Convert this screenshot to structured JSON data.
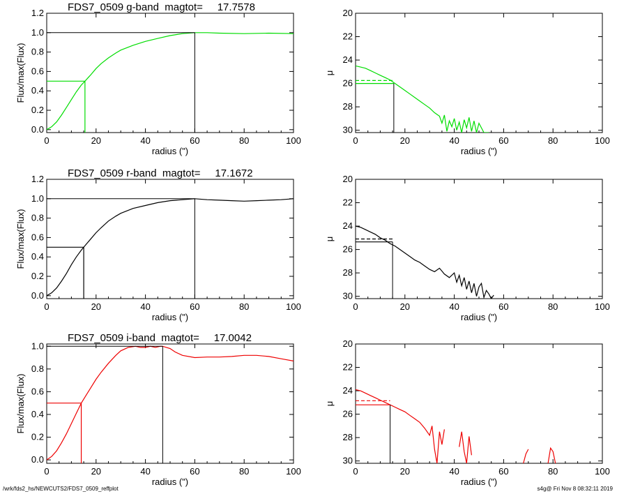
{
  "footer": {
    "path": "/wrk/fds2_hs/NEWCUTS2/FDS7_0509_reffplot",
    "stamp": "s4g@  Fri Nov  8 08:32:11 2019"
  },
  "colors": {
    "g": "#00dd00",
    "r": "#000000",
    "i": "#ee0000",
    "axis": "#000000"
  },
  "chart_data": [
    {
      "type": "line",
      "title": "FDS7_0509 g-band  magtot=     17.7578",
      "xlabel": "radius (\")",
      "ylabel": "Flux/max(Flux)",
      "xlim": [
        0,
        100
      ],
      "ylim": [
        -0.03,
        1.2
      ],
      "xticks": [
        0,
        20,
        40,
        60,
        80,
        100
      ],
      "xticklabels": [
        "0",
        "20",
        "40",
        "60",
        "80",
        "100"
      ],
      "yticks": [
        0,
        0.2,
        0.4,
        0.6,
        0.8,
        1.0,
        1.2
      ],
      "yticklabels": [
        "0.0",
        "0.2",
        "0.4",
        "0.6",
        "0.8",
        "1.0",
        "1.2"
      ],
      "color": "#00dd00",
      "x": [
        0,
        2,
        4,
        6,
        8,
        10,
        12,
        14,
        15.5,
        18,
        20,
        22,
        25,
        28,
        30,
        35,
        40,
        45,
        50,
        55,
        60,
        65,
        70,
        80,
        90,
        100
      ],
      "y": [
        0,
        0.03,
        0.08,
        0.15,
        0.23,
        0.31,
        0.39,
        0.46,
        0.5,
        0.57,
        0.63,
        0.68,
        0.74,
        0.79,
        0.82,
        0.87,
        0.91,
        0.94,
        0.97,
        0.99,
        1.0,
        1.0,
        0.995,
        0.99,
        0.995,
        0.99
      ],
      "half_radius": 15.5,
      "half_level": 0.5,
      "total_radius": 60,
      "total_level": 1.0
    },
    {
      "type": "line",
      "title": "",
      "xlabel": "radius (\")",
      "ylabel": "μ",
      "xlim": [
        0,
        100
      ],
      "ylim": [
        30.2,
        20
      ],
      "inverted_y": true,
      "xticks": [
        0,
        20,
        40,
        60,
        80,
        100
      ],
      "xticklabels": [
        "0",
        "20",
        "40",
        "60",
        "80",
        "100"
      ],
      "yticks": [
        20,
        22,
        24,
        26,
        28,
        30
      ],
      "yticklabels": [
        "20",
        "22",
        "24",
        "26",
        "28",
        "30"
      ],
      "color": "#00dd00",
      "x": [
        0,
        2,
        4,
        6,
        8,
        10,
        12,
        14,
        16,
        18,
        20,
        22,
        24,
        26,
        28,
        30,
        32,
        34,
        35,
        36,
        37,
        38,
        39,
        40,
        41,
        42,
        43,
        44,
        45,
        46,
        47,
        48,
        49,
        50,
        52,
        54
      ],
      "y": [
        24.5,
        24.6,
        24.7,
        24.9,
        25.1,
        25.3,
        25.5,
        25.7,
        26.0,
        26.3,
        26.6,
        26.9,
        27.2,
        27.5,
        27.8,
        28.1,
        28.5,
        28.8,
        29.4,
        28.7,
        30.1,
        29.2,
        29.7,
        29.0,
        30.0,
        29.3,
        30.2,
        29.1,
        29.8,
        28.9,
        30.1,
        29.2,
        30.2,
        29.4,
        30.2,
        30.2
      ],
      "half_radius": 15.5,
      "mu_half": 26.0,
      "mu_mean_half": 25.75
    },
    {
      "type": "line",
      "title": "FDS7_0509 r-band  magtot=     17.1672",
      "xlabel": "radius (\")",
      "ylabel": "Flux/max(Flux)",
      "xlim": [
        0,
        100
      ],
      "ylim": [
        -0.03,
        1.2
      ],
      "xticks": [
        0,
        20,
        40,
        60,
        80,
        100
      ],
      "xticklabels": [
        "0",
        "20",
        "40",
        "60",
        "80",
        "100"
      ],
      "yticks": [
        0,
        0.2,
        0.4,
        0.6,
        0.8,
        1.0,
        1.2
      ],
      "yticklabels": [
        "0.0",
        "0.2",
        "0.4",
        "0.6",
        "0.8",
        "1.0",
        "1.2"
      ],
      "color": "#000000",
      "x": [
        0,
        2,
        4,
        6,
        8,
        10,
        12,
        14,
        15,
        18,
        20,
        22,
        25,
        28,
        30,
        35,
        40,
        45,
        50,
        55,
        60,
        65,
        70,
        75,
        80,
        85,
        90,
        95,
        100
      ],
      "y": [
        0,
        0.03,
        0.08,
        0.15,
        0.23,
        0.32,
        0.4,
        0.47,
        0.5,
        0.59,
        0.65,
        0.7,
        0.77,
        0.82,
        0.85,
        0.9,
        0.93,
        0.96,
        0.98,
        0.99,
        1.0,
        0.99,
        0.985,
        0.98,
        0.975,
        0.98,
        0.985,
        0.99,
        1.0
      ],
      "half_radius": 15,
      "half_level": 0.5,
      "total_radius": 60,
      "total_level": 1.0
    },
    {
      "type": "line",
      "title": "",
      "xlabel": "radius (\")",
      "ylabel": "μ",
      "xlim": [
        0,
        100
      ],
      "ylim": [
        30.2,
        20
      ],
      "inverted_y": true,
      "xticks": [
        0,
        20,
        40,
        60,
        80,
        100
      ],
      "xticklabels": [
        "0",
        "20",
        "40",
        "60",
        "80",
        "100"
      ],
      "yticks": [
        20,
        22,
        24,
        26,
        28,
        30
      ],
      "yticklabels": [
        "20",
        "22",
        "24",
        "26",
        "28",
        "30"
      ],
      "color": "#000000",
      "x": [
        0,
        2,
        4,
        6,
        8,
        10,
        12,
        14,
        16,
        18,
        20,
        22,
        24,
        26,
        28,
        30,
        32,
        34,
        36,
        38,
        40,
        41,
        42,
        43,
        44,
        45,
        46,
        47,
        48,
        49,
        50,
        51,
        52,
        53,
        54,
        55,
        56
      ],
      "y": [
        24.0,
        24.1,
        24.3,
        24.5,
        24.7,
        25.0,
        25.2,
        25.5,
        25.7,
        26.0,
        26.3,
        26.6,
        26.9,
        27.1,
        27.4,
        27.7,
        27.9,
        27.6,
        28.1,
        28.4,
        28.0,
        28.8,
        28.2,
        29.1,
        28.4,
        29.4,
        28.7,
        29.7,
        28.9,
        30.0,
        29.2,
        28.9,
        30.1,
        29.5,
        29.8,
        30.2,
        29.9
      ],
      "half_radius": 15,
      "mu_half": 25.35,
      "mu_mean_half": 25.1
    },
    {
      "type": "line",
      "title": "FDS7_0509 i-band  magtot=     17.0042",
      "xlabel": "radius (\")",
      "ylabel": "Flux/max(Flux)",
      "xlim": [
        0,
        100
      ],
      "ylim": [
        -0.03,
        1.02
      ],
      "xticks": [
        0,
        20,
        40,
        60,
        80,
        100
      ],
      "xticklabels": [
        "0",
        "20",
        "40",
        "60",
        "80",
        "100"
      ],
      "yticks": [
        0,
        0.2,
        0.4,
        0.6,
        0.8,
        1.0
      ],
      "yticklabels": [
        "0.0",
        "0.2",
        "0.4",
        "0.6",
        "0.8",
        "1.0"
      ],
      "color": "#ee0000",
      "x": [
        0,
        2,
        4,
        6,
        8,
        10,
        12,
        14,
        16,
        18,
        20,
        22,
        25,
        28,
        30,
        33,
        36,
        38,
        40,
        42,
        44,
        46,
        47,
        50,
        52,
        55,
        60,
        65,
        70,
        75,
        80,
        85,
        90,
        95,
        100
      ],
      "y": [
        0,
        0.03,
        0.08,
        0.15,
        0.23,
        0.32,
        0.41,
        0.5,
        0.57,
        0.64,
        0.71,
        0.77,
        0.85,
        0.92,
        0.96,
        0.99,
        1.0,
        0.99,
        0.99,
        1.0,
        0.99,
        1.0,
        1.0,
        0.98,
        0.95,
        0.92,
        0.9,
        0.905,
        0.905,
        0.91,
        0.92,
        0.92,
        0.91,
        0.89,
        0.87
      ],
      "half_radius": 14,
      "half_level": 0.5,
      "total_radius": 47,
      "total_level": 1.0
    },
    {
      "type": "line",
      "title": "",
      "xlabel": "radius (\")",
      "ylabel": "μ",
      "xlim": [
        0,
        100
      ],
      "ylim": [
        30.2,
        20
      ],
      "inverted_y": true,
      "xticks": [
        0,
        20,
        40,
        60,
        80,
        100
      ],
      "xticklabels": [
        "0",
        "20",
        "40",
        "60",
        "80",
        "100"
      ],
      "yticks": [
        20,
        22,
        24,
        26,
        28,
        30
      ],
      "yticklabels": [
        "20",
        "22",
        "24",
        "26",
        "28",
        "30"
      ],
      "color": "#ee0000",
      "x": [
        0,
        2,
        4,
        6,
        8,
        10,
        12,
        14,
        16,
        18,
        20,
        22,
        24,
        26,
        28,
        30,
        31,
        32,
        33,
        34,
        35,
        36,
        42,
        43,
        44,
        45,
        46,
        47,
        68,
        69,
        70,
        78,
        79,
        80,
        81
      ],
      "y": [
        23.9,
        24.0,
        24.2,
        24.4,
        24.6,
        24.8,
        25.0,
        25.2,
        25.4,
        25.6,
        25.8,
        26.1,
        26.4,
        26.7,
        27.2,
        27.8,
        27.0,
        29.0,
        30.2,
        27.5,
        28.6,
        27.3,
        28.8,
        27.5,
        29.2,
        30.2,
        27.9,
        29.5,
        30.2,
        29.4,
        29.0,
        30.2,
        28.9,
        29.2,
        30.2
      ],
      "segments": [
        [
          0,
          22
        ],
        [
          22,
          28
        ],
        [
          28,
          31
        ],
        [
          31,
          35
        ]
      ],
      "half_radius": 14,
      "mu_half": 25.2,
      "mu_mean_half": 24.85
    }
  ]
}
